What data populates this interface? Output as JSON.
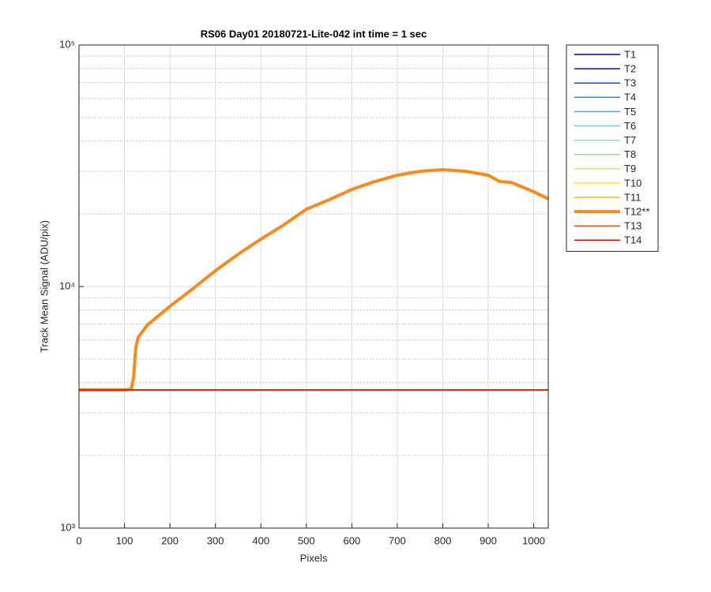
{
  "chart_data": {
    "type": "line",
    "title": "RS06 Day01 20180721-Lite-042 int time = 1 sec",
    "x_label": "Pixels",
    "y_label": "Track Mean Signal (ADU/pix)",
    "y_scale": "log",
    "grid": true,
    "legend": "outside-right",
    "xlim": [
      0,
      1032
    ],
    "xticks": [
      0,
      100,
      200,
      300,
      400,
      500,
      600,
      700,
      800,
      900,
      1000
    ],
    "ylim": [
      1000,
      100000
    ],
    "yticks": [
      {
        "value": 1000,
        "label": "10³"
      },
      {
        "value": 10000,
        "label": "10⁴"
      },
      {
        "value": 100000,
        "label": "10⁵"
      }
    ],
    "yminorticks": [
      2000,
      3000,
      4000,
      5000,
      6000,
      7000,
      8000,
      9000,
      20000,
      30000,
      40000,
      50000,
      60000,
      70000,
      80000,
      90000
    ],
    "x": [
      0,
      50,
      100,
      115,
      120,
      125,
      130,
      150,
      200,
      250,
      300,
      350,
      400,
      450,
      500,
      550,
      600,
      650,
      700,
      750,
      800,
      850,
      900,
      925,
      950,
      1000,
      1032
    ],
    "series": [
      {
        "name": "T1",
        "color": "#00008f",
        "width": 1.5,
        "values": [
          3730,
          3730,
          3730,
          3730,
          3730,
          3730,
          3730,
          3730,
          3730,
          3730,
          3730,
          3730,
          3730,
          3730,
          3730,
          3730,
          3730,
          3730,
          3730,
          3730,
          3730,
          3730,
          3730,
          3730,
          3730,
          3730,
          3730
        ]
      },
      {
        "name": "T2",
        "color": "#0010c8",
        "width": 1.5,
        "values": [
          3730,
          3730,
          3730,
          3730,
          3730,
          3730,
          3730,
          3730,
          3730,
          3730,
          3730,
          3730,
          3730,
          3730,
          3730,
          3730,
          3730,
          3730,
          3730,
          3730,
          3730,
          3730,
          3730,
          3730,
          3730,
          3730,
          3730
        ]
      },
      {
        "name": "T3",
        "color": "#1048e0",
        "width": 1.5,
        "values": [
          3730,
          3730,
          3730,
          3730,
          3730,
          3730,
          3730,
          3730,
          3730,
          3730,
          3730,
          3730,
          3730,
          3730,
          3730,
          3730,
          3730,
          3730,
          3730,
          3730,
          3730,
          3730,
          3730,
          3730,
          3730,
          3730,
          3730
        ]
      },
      {
        "name": "T4",
        "color": "#1e8ae0",
        "width": 1.5,
        "values": [
          3730,
          3730,
          3730,
          3730,
          3730,
          3730,
          3730,
          3730,
          3730,
          3730,
          3730,
          3730,
          3730,
          3730,
          3730,
          3730,
          3730,
          3730,
          3730,
          3730,
          3730,
          3730,
          3730,
          3730,
          3730,
          3730,
          3730
        ]
      },
      {
        "name": "T5",
        "color": "#30b4f0",
        "width": 1.5,
        "values": [
          3730,
          3730,
          3730,
          3730,
          3730,
          3730,
          3730,
          3730,
          3730,
          3730,
          3730,
          3730,
          3730,
          3730,
          3730,
          3730,
          3730,
          3730,
          3730,
          3730,
          3730,
          3730,
          3730,
          3730,
          3730,
          3730,
          3730
        ]
      },
      {
        "name": "T6",
        "color": "#40e4e4",
        "width": 1.5,
        "values": [
          3730,
          3730,
          3730,
          3730,
          3730,
          3730,
          3730,
          3730,
          3730,
          3730,
          3730,
          3730,
          3730,
          3730,
          3730,
          3730,
          3730,
          3730,
          3730,
          3730,
          3730,
          3730,
          3730,
          3730,
          3730,
          3730,
          3730
        ]
      },
      {
        "name": "T7",
        "color": "#80e4c4",
        "width": 1.5,
        "values": [
          3730,
          3730,
          3730,
          3730,
          3730,
          3730,
          3730,
          3730,
          3730,
          3730,
          3730,
          3730,
          3730,
          3730,
          3730,
          3730,
          3730,
          3730,
          3730,
          3730,
          3730,
          3730,
          3730,
          3730,
          3730,
          3730,
          3730
        ]
      },
      {
        "name": "T8",
        "color": "#80f080",
        "width": 1.5,
        "values": [
          3730,
          3730,
          3730,
          3730,
          3730,
          3730,
          3730,
          3730,
          3730,
          3730,
          3730,
          3730,
          3730,
          3730,
          3730,
          3730,
          3730,
          3730,
          3730,
          3730,
          3730,
          3730,
          3730,
          3730,
          3730,
          3730,
          3730
        ]
      },
      {
        "name": "T9",
        "color": "#c4f060",
        "width": 1.5,
        "values": [
          3730,
          3730,
          3730,
          3730,
          3730,
          3730,
          3730,
          3730,
          3730,
          3730,
          3730,
          3730,
          3730,
          3730,
          3730,
          3730,
          3730,
          3730,
          3730,
          3730,
          3730,
          3730,
          3730,
          3730,
          3730,
          3730,
          3730
        ]
      },
      {
        "name": "T10",
        "color": "#f0f000",
        "width": 1.5,
        "values": [
          3730,
          3730,
          3730,
          3730,
          3730,
          3730,
          3730,
          3730,
          3730,
          3730,
          3730,
          3730,
          3730,
          3730,
          3730,
          3730,
          3730,
          3730,
          3730,
          3730,
          3730,
          3730,
          3730,
          3730,
          3730,
          3730,
          3730
        ]
      },
      {
        "name": "T11",
        "color": "#f0c000",
        "width": 1.5,
        "values": [
          3730,
          3730,
          3730,
          3730,
          3730,
          3730,
          3730,
          3730,
          3730,
          3730,
          3730,
          3730,
          3730,
          3730,
          3730,
          3730,
          3730,
          3730,
          3730,
          3730,
          3730,
          3730,
          3730,
          3730,
          3730,
          3730,
          3730
        ]
      },
      {
        "name": "T12**",
        "color": "#f88a1e",
        "width": 4,
        "values": [
          3730,
          3730,
          3730,
          3760,
          4200,
          5600,
          6150,
          6920,
          8280,
          9780,
          11620,
          13600,
          15710,
          17980,
          20900,
          22870,
          25220,
          27200,
          28900,
          30000,
          30470,
          30000,
          28900,
          27200,
          27000,
          24680,
          23070
        ]
      },
      {
        "name": "T13",
        "color": "#ff4a1a",
        "width": 1.5,
        "values": [
          3730,
          3730,
          3730,
          3730,
          3730,
          3730,
          3730,
          3730,
          3730,
          3730,
          3730,
          3730,
          3730,
          3730,
          3730,
          3730,
          3730,
          3730,
          3730,
          3730,
          3730,
          3730,
          3730,
          3730,
          3730,
          3730,
          3730
        ]
      },
      {
        "name": "T14",
        "color": "#e00a0a",
        "width": 1.5,
        "values": [
          3730,
          3730,
          3730,
          3730,
          3730,
          3730,
          3730,
          3730,
          3730,
          3730,
          3730,
          3730,
          3730,
          3730,
          3730,
          3730,
          3730,
          3730,
          3730,
          3730,
          3730,
          3730,
          3730,
          3730,
          3730,
          3730,
          3730
        ]
      }
    ]
  }
}
